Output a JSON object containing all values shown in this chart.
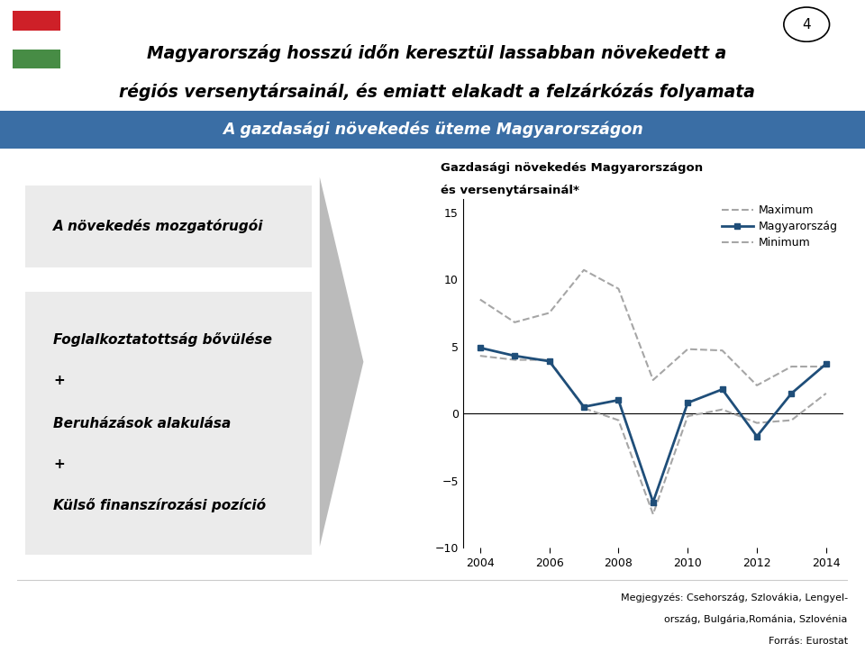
{
  "title_line1": "Magyarország hosszú időn keresztül lassabban növekedett a",
  "title_line2": "régiós versenytársainál, és emiatt elakadt a felzárkózás folyamata",
  "subtitle": "A gazdasági növekedés üteme Magyarországon",
  "subtitle_bg": "#3a6ea5",
  "chart_title_line1": "Gazdasági növekedés Magyarországon",
  "chart_title_line2": "és versenytársainál*",
  "left_box1_text": "A növekedés mozgatórugói",
  "left_box2_line1": "Foglalkoztatottság bővülése",
  "left_box2_line2": "+",
  "left_box2_line3": "Beruházások alakulása",
  "left_box2_line4": "+",
  "left_box2_line5": "Külső finanszírozási pozíció",
  "footer_line1": "Megjegyzés: Csehország, Szlovákia, Lengyel-",
  "footer_line2": "ország, Bulgária,Románia, Szlovénia",
  "footer_line3": "Forrás: Eurostat",
  "page_num": "4",
  "years": [
    2004,
    2005,
    2006,
    2007,
    2008,
    2009,
    2010,
    2011,
    2012,
    2013,
    2014
  ],
  "hungary": [
    4.9,
    4.3,
    3.9,
    0.5,
    1.0,
    -6.6,
    0.8,
    1.8,
    -1.7,
    1.5,
    3.7
  ],
  "maximum": [
    8.5,
    6.8,
    7.5,
    10.7,
    9.3,
    2.5,
    4.8,
    4.7,
    2.1,
    3.5,
    3.5
  ],
  "minimum": [
    4.3,
    4.0,
    4.0,
    0.4,
    -0.5,
    -7.5,
    -0.2,
    0.3,
    -0.7,
    -0.5,
    1.5
  ],
  "hungary_color": "#1f4e79",
  "max_color": "#a6a6a6",
  "min_color": "#a6a6a6",
  "ylim": [
    -10,
    16
  ],
  "yticks": [
    -10,
    -5,
    0,
    5,
    10,
    15
  ],
  "bg_color": "#ffffff",
  "box_bg": "#ebebeb",
  "flag_red": "#ce2028",
  "flag_green": "#478c45",
  "flag_white": "#ffffff",
  "arrow_color": "#b0b0b0"
}
